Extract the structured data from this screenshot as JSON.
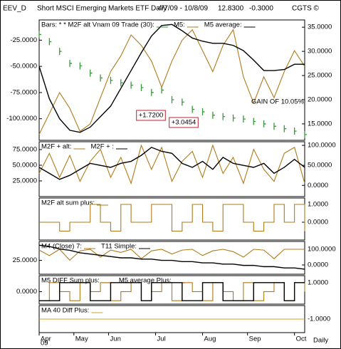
{
  "header": {
    "symbol": "EEV_D",
    "title": "Short MSCI Emerging Markets ETF Daily",
    "range": "4/7/09 - 10/8/09",
    "last": "12.8300",
    "change": "-0.3000",
    "copyright": "CGTS ©"
  },
  "x_axis": {
    "year": "09",
    "label": "Daily"
  },
  "chart_data": [
    {
      "type": "line",
      "xlim": [
        0,
        130
      ],
      "x": [
        0,
        5,
        10,
        15,
        20,
        25,
        30,
        35,
        40,
        45,
        50,
        55,
        60,
        65,
        70,
        75,
        80,
        85,
        90,
        95,
        100,
        105,
        110,
        115,
        120,
        125,
        130
      ],
      "ylim": [
        -120.6,
        -5.7
      ],
      "yticks": [
        {
          "value": -25,
          "label": "-25.0000"
        },
        {
          "value": -50,
          "label": "-50.0000"
        },
        {
          "value": -75,
          "label": "-75.0000"
        },
        {
          "value": -100,
          "label": "-100.0000"
        }
      ],
      "y2lim": [
        11.6,
        36.5
      ],
      "y2ticks": [
        {
          "value": 35,
          "label": "35.0000"
        },
        {
          "value": 30,
          "label": "30.0000"
        },
        {
          "value": 25,
          "label": "25.0000"
        },
        {
          "value": 20,
          "label": "20.0000"
        },
        {
          "value": 15,
          "label": "15.0000"
        }
      ],
      "series": [
        {
          "name": "Bars:   * * M2F alt Vnam 09 Trade (30):",
          "color": "#3a9a3a",
          "style": "bars",
          "axis": "y2",
          "values": [
            33.5,
            32,
            30,
            27.5,
            27,
            25.5,
            24.5,
            24,
            23.5,
            23,
            22.5,
            21.5,
            22,
            20,
            19.5,
            18,
            17.5,
            16.8,
            16.5,
            16.2,
            16,
            15.5,
            15,
            14.5,
            14,
            13.5,
            12.8
          ]
        },
        {
          "name": "M5:",
          "color": "#b07a1a",
          "values": [
            -115,
            -95,
            -75,
            -90,
            -112,
            -105,
            -80,
            -55,
            -40,
            -20,
            -30,
            -45,
            -70,
            -45,
            -25,
            -15,
            -35,
            -55,
            -30,
            -15,
            -60,
            -85,
            -60,
            -80,
            -55,
            -35,
            -50
          ]
        },
        {
          "name": "M5 average:",
          "color": "#000000",
          "values": [
            -50,
            -81,
            -100,
            -111,
            -113,
            -108,
            -98,
            -88,
            -71,
            -54,
            -37,
            -21,
            -11,
            -10,
            -16,
            -23,
            -26,
            -28,
            -28,
            -30,
            -35,
            -44,
            -54,
            -54,
            -53,
            -48,
            -48
          ]
        }
      ],
      "annotations": [
        "+1.7200",
        "+3.0454",
        "GAIN OF 10.05%"
      ]
    },
    {
      "type": "line",
      "xlim": [
        0,
        130
      ],
      "x": [
        0,
        5,
        10,
        15,
        20,
        25,
        30,
        35,
        40,
        45,
        50,
        55,
        60,
        65,
        70,
        75,
        80,
        85,
        90,
        95,
        100,
        105,
        110,
        115,
        120,
        125,
        130
      ],
      "ylim": [
        0,
        87.5
      ],
      "yticks": [
        {
          "value": 75,
          "label": "75.0000"
        },
        {
          "value": 50,
          "label": "50.0000"
        },
        {
          "value": 25,
          "label": "25.0000"
        }
      ],
      "y2lim": [
        -28,
        109
      ],
      "y2ticks": [
        {
          "value": 100,
          "label": "100.0000"
        },
        {
          "value": 50,
          "label": "50.0000"
        },
        {
          "value": 0,
          "label": "0.0000"
        }
      ],
      "series": [
        {
          "name": "M2F + alt:",
          "color": "#b07a1a",
          "axis": "y2",
          "values": [
            30,
            80,
            20,
            75,
            10,
            60,
            90,
            20,
            70,
            5,
            100,
            40,
            95,
            10,
            60,
            85,
            20,
            100,
            30,
            70,
            5,
            90,
            40,
            10,
            80,
            95,
            5
          ]
        },
        {
          "name": "M2F + :",
          "color": "#000000",
          "axis": "y2",
          "values": [
            45,
            30,
            15,
            25,
            40,
            55,
            50,
            45,
            55,
            60,
            75,
            95,
            85,
            80,
            55,
            45,
            60,
            40,
            70,
            55,
            50,
            45,
            55,
            30,
            45,
            65,
            45
          ]
        }
      ]
    },
    {
      "type": "line",
      "xlim": [
        0,
        130
      ],
      "x": [
        0,
        5,
        10,
        15,
        20,
        25,
        30,
        35,
        40,
        45,
        50,
        55,
        60,
        65,
        70,
        75,
        80,
        85,
        90,
        95,
        100,
        105,
        110,
        115,
        120,
        125,
        130
      ],
      "y2lim": [
        -1,
        1.36
      ],
      "y2ticks": [
        {
          "value": 1,
          "label": "1.0000"
        },
        {
          "value": 0,
          "label": "0.0000"
        }
      ],
      "step": true,
      "series": [
        {
          "name": "M2F alt sum plus:",
          "color": "#b07a1a",
          "axis": "y2",
          "values": [
            0,
            0,
            -0.5,
            0,
            0,
            1,
            0,
            -0.5,
            1,
            0,
            0,
            1,
            1,
            -0.5,
            0,
            1,
            0,
            -0.5,
            1,
            1,
            0,
            -0.5,
            0,
            1,
            0,
            1,
            -0.5
          ]
        }
      ]
    },
    {
      "type": "line",
      "xlim": [
        0,
        130
      ],
      "x": [
        0,
        5,
        10,
        15,
        20,
        25,
        30,
        35,
        40,
        45,
        50,
        55,
        60,
        65,
        70,
        75,
        80,
        85,
        90,
        95,
        100,
        105,
        110,
        115,
        120,
        125,
        130
      ],
      "ylim": [
        14,
        40
      ],
      "yticks": [
        {
          "value": 25,
          "label": "25.0000"
        }
      ],
      "y2lim": [
        -59,
        150
      ],
      "y2ticks": [
        {
          "value": 100,
          "label": "100.0000"
        },
        {
          "value": 0,
          "label": "0.0000"
        }
      ],
      "series": [
        {
          "name": "M4 (Close) 7:",
          "color": "#b07a1a",
          "axis": "y2",
          "values": [
            95,
            60,
            100,
            30,
            90,
            100,
            50,
            95,
            80,
            100,
            40,
            90,
            100,
            70,
            95,
            100,
            60,
            90,
            100,
            85,
            50,
            100,
            95,
            40,
            100,
            100,
            100
          ]
        },
        {
          "name": "T11 Simple:",
          "color": "#000000",
          "values": [
            37,
            36,
            34,
            33,
            31,
            30,
            29,
            28,
            27,
            27,
            26,
            26,
            25,
            25,
            24,
            24,
            23,
            23,
            22,
            22,
            21,
            21,
            20,
            20,
            19,
            19,
            18
          ]
        }
      ]
    },
    {
      "type": "line",
      "xlim": [
        0,
        130
      ],
      "x": [
        0,
        5,
        10,
        15,
        20,
        25,
        30,
        35,
        40,
        45,
        50,
        55,
        60,
        65,
        70,
        75,
        80,
        85,
        90,
        95,
        100,
        105,
        110,
        115,
        120,
        125,
        130
      ],
      "ylim": [
        -1.38,
        1.77
      ],
      "yticks": [
        {
          "value": 0,
          "label": "0.0000"
        }
      ],
      "y2lim": [
        -1.38,
        1.77
      ],
      "y2ticks": [
        {
          "value": 1,
          "label": "1.0000"
        }
      ],
      "step": true,
      "series": [
        {
          "name": "M5 DIFF Sum plus:",
          "color": "#b07a1a",
          "values": [
            -1,
            1,
            0,
            -1,
            1,
            0,
            1,
            -1,
            0,
            1,
            -1,
            0,
            1,
            -1,
            1,
            0,
            -1,
            1,
            0,
            -1,
            1,
            -1,
            0,
            1,
            -1,
            1,
            0
          ]
        },
        {
          "name": "M5 average Plus:",
          "color": "#000000",
          "values": [
            -1,
            -1,
            1,
            1,
            1,
            -1,
            -1,
            1,
            1,
            1,
            -1,
            1,
            1,
            1,
            -1,
            -1,
            1,
            1,
            -1,
            -1,
            -1,
            1,
            1,
            1,
            -1,
            1,
            1
          ]
        }
      ]
    },
    {
      "type": "line",
      "xlim": [
        0,
        130
      ],
      "x": [
        0,
        5,
        10,
        15,
        20,
        25,
        30,
        35,
        40,
        45,
        50,
        55,
        60,
        65,
        70,
        75,
        80,
        85,
        90,
        95,
        100,
        105,
        110,
        115,
        120,
        125,
        130
      ],
      "y2lim": [
        -2,
        0
      ],
      "y2ticks": [
        {
          "value": -1,
          "label": "-1.0000"
        }
      ],
      "xticks": [
        {
          "value": 0,
          "label": "Apr"
        },
        {
          "value": 17,
          "label": "May"
        },
        {
          "value": 34,
          "label": "Jun"
        },
        {
          "value": 57,
          "label": "Jul"
        },
        {
          "value": 80,
          "label": "Aug"
        },
        {
          "value": 102,
          "label": "Sep"
        },
        {
          "value": 125,
          "label": "Oct"
        }
      ],
      "series": [
        {
          "name": "MA 40 Diff Plus:",
          "color": "#d4a020",
          "axis": "y2",
          "values": [
            -1,
            -1,
            -1,
            -1,
            -1,
            -1,
            -1,
            -1,
            -1,
            -1,
            -1,
            -1,
            -1,
            -1,
            -1,
            -1,
            -1,
            -1,
            -1,
            -1,
            -1,
            -1,
            -1,
            -1,
            -1,
            -1,
            -1
          ]
        }
      ]
    }
  ]
}
